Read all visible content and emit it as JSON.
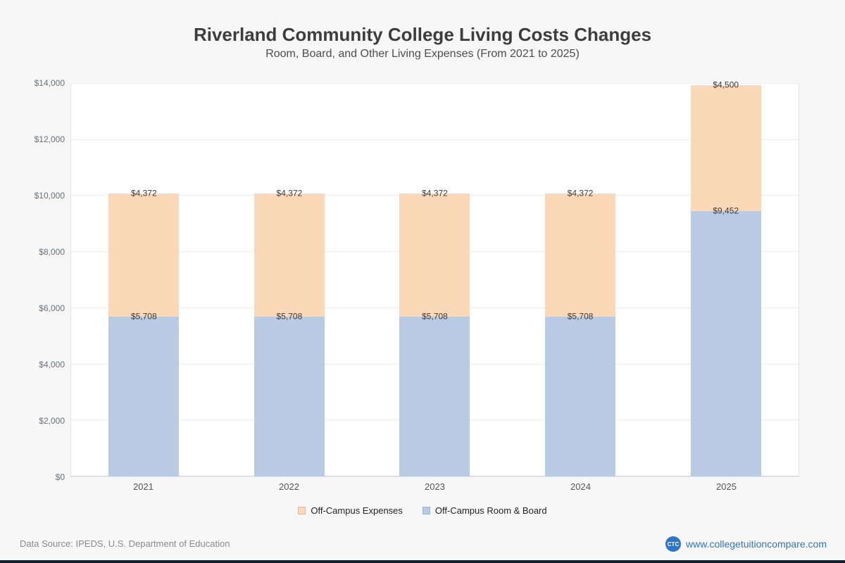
{
  "header": {
    "title": "Riverland Community College Living Costs Changes",
    "subtitle": "Room, Board, and Other Living Expenses (From 2021 to 2025)"
  },
  "chart_data": {
    "type": "bar",
    "stacked": true,
    "title": "Riverland Community College Living Costs Changes",
    "subtitle": "Room, Board, and Other Living Expenses (From 2021 to 2025)",
    "categories": [
      "2021",
      "2022",
      "2023",
      "2024",
      "2025"
    ],
    "series": [
      {
        "name": "Off-Campus Room & Board",
        "color": "#b9cbe2",
        "border_color": "#9db4d2",
        "values": [
          5708,
          5708,
          5708,
          5708,
          9452
        ],
        "labels": [
          "$5,708",
          "$5,708",
          "$5,708",
          "$5,708",
          "$9,452"
        ]
      },
      {
        "name": "Off-Campus Expenses",
        "color": "#fad8b8",
        "border_color": "#e5b78c",
        "values": [
          4372,
          4372,
          4372,
          4372,
          4500
        ],
        "labels": [
          "$4,372",
          "$4,372",
          "$4,372",
          "$4,372",
          "$4,500"
        ]
      }
    ],
    "xlabel": "",
    "ylabel": "",
    "ylim": [
      0,
      14000
    ],
    "yticks": [
      {
        "value": 0,
        "label": "$0"
      },
      {
        "value": 2000,
        "label": "$2,000"
      },
      {
        "value": 4000,
        "label": "$4,000"
      },
      {
        "value": 6000,
        "label": "$6,000"
      },
      {
        "value": 8000,
        "label": "$8,000"
      },
      {
        "value": 10000,
        "label": "$10,000"
      },
      {
        "value": 12000,
        "label": "$12,000"
      },
      {
        "value": 14000,
        "label": "$14,000"
      }
    ],
    "grid": true,
    "legend_position": "bottom"
  },
  "legend": [
    {
      "label": "Off-Campus Expenses",
      "color": "#fad8b8",
      "border_color": "#e5b78c"
    },
    {
      "label": "Off-Campus Room & Board",
      "color": "#b9cbe2",
      "border_color": "#9db4d2"
    }
  ],
  "footer": {
    "source": "Data Source: IPEDS, U.S. Department of Education",
    "logo_text": "CTC",
    "website": "www.collegetuitioncompare.com"
  }
}
